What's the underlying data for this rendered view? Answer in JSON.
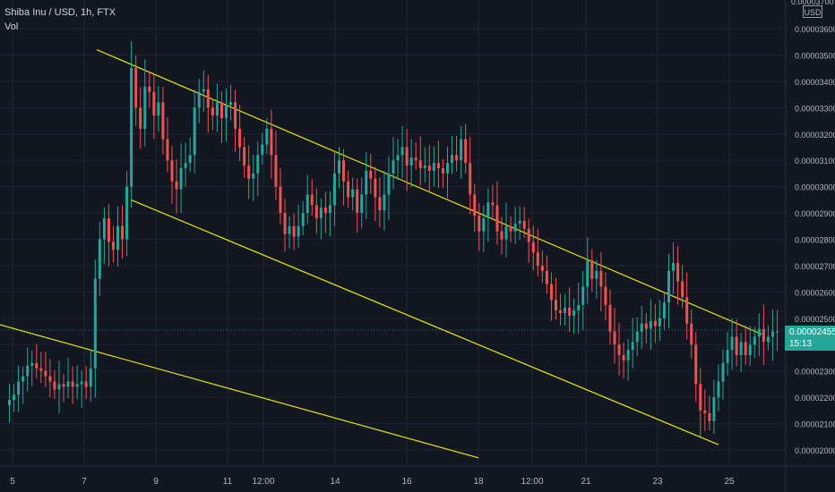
{
  "header": {
    "title": "Shiba Inu / USD, 1h, FTX",
    "volume_label": "Vol"
  },
  "price_scale": {
    "currency": "USD",
    "top_partial_label": "0.00003700"
  },
  "last_price": {
    "value": "0.00002455",
    "countdown": "15:13",
    "color": "#26a69a"
  },
  "colors": {
    "background": "#131722",
    "up": "#26a69a",
    "down": "#ef5350",
    "trendline": "#e6e600",
    "grid": "#1f2430",
    "axis_text": "#b2b5be"
  },
  "chart_data": {
    "type": "candlestick",
    "title": "Shiba Inu / USD, 1h, FTX",
    "ylabel": "USD",
    "ylim": [
      1.97e-05,
      3.7e-05
    ],
    "yticks": [
      "0.00002000",
      "0.00002100",
      "0.00002200",
      "0.00002300",
      "0.00002400",
      "0.00002500",
      "0.00002600",
      "0.00002700",
      "0.00002800",
      "0.00002900",
      "0.00003000",
      "0.00003100",
      "0.00003200",
      "0.00003300",
      "0.00003400",
      "0.00003500",
      "0.00003600"
    ],
    "xticks": [
      "5",
      "7",
      "9",
      "11",
      "12:00",
      "14",
      "16",
      "18",
      "12:00",
      "21",
      "23",
      "25"
    ],
    "grid": true,
    "series": [
      {
        "closes": [
          2.19e-05,
          2.21e-05,
          2.26e-05,
          2.28e-05,
          2.32e-05,
          2.33e-05,
          2.31e-05,
          2.3e-05,
          2.28e-05,
          2.26e-05,
          2.23e-05,
          2.25e-05,
          2.24e-05,
          2.26e-05,
          2.24e-05,
          2.25e-05,
          2.26e-05,
          2.24e-05,
          2.31e-05,
          2.65e-05,
          2.8e-05,
          2.88e-05,
          2.79e-05,
          2.76e-05,
          2.85e-05,
          2.8e-05,
          3e-05,
          3.45e-05,
          3.3e-05,
          3.22e-05,
          3.38e-05,
          3.36e-05,
          3.27e-05,
          3.32e-05,
          3.18e-05,
          3.1e-05,
          3.02e-05,
          2.99e-05,
          3.07e-05,
          3.09e-05,
          3.12e-05,
          3.3e-05,
          3.36e-05,
          3.37e-05,
          3.3e-05,
          3.27e-05,
          3.32e-05,
          3.26e-05,
          3.31e-05,
          3.32e-05,
          3.22e-05,
          3.15e-05,
          3.08e-05,
          3.03e-05,
          3.05e-05,
          3.12e-05,
          3.16e-05,
          3.22e-05,
          3.12e-05,
          3e-05,
          2.9e-05,
          2.82e-05,
          2.85e-05,
          2.81e-05,
          2.85e-05,
          2.9e-05,
          2.97e-05,
          2.93e-05,
          2.88e-05,
          2.92e-05,
          2.9e-05,
          2.93e-05,
          3.05e-05,
          3.1e-05,
          3.02e-05,
          2.96e-05,
          2.99e-05,
          2.9e-05,
          2.97e-05,
          3.06e-05,
          3.03e-05,
          2.96e-05,
          2.91e-05,
          2.97e-05,
          3.05e-05,
          3.1e-05,
          3.12e-05,
          3.15e-05,
          3.08e-05,
          3.11e-05,
          3.1e-05,
          3.07e-05,
          3.08e-05,
          3.06e-05,
          3.09e-05,
          3.07e-05,
          3.05e-05,
          3.09e-05,
          3.12e-05,
          3.1e-05,
          3.18e-05,
          3.09e-05,
          2.97e-05,
          2.89e-05,
          2.83e-05,
          2.88e-05,
          2.94e-05,
          2.93e-05,
          2.83e-05,
          2.8e-05,
          2.85e-05,
          2.83e-05,
          2.86e-05,
          2.87e-05,
          2.84e-05,
          2.79e-05,
          2.75e-05,
          2.7e-05,
          2.68e-05,
          2.63e-05,
          2.57e-05,
          2.53e-05,
          2.52e-05,
          2.54e-05,
          2.51e-05,
          2.53e-05,
          2.55e-05,
          2.62e-05,
          2.72e-05,
          2.65e-05,
          2.68e-05,
          2.62e-05,
          2.55e-05,
          2.45e-05,
          2.4e-05,
          2.36e-05,
          2.34e-05,
          2.38e-05,
          2.41e-05,
          2.45e-05,
          2.48e-05,
          2.46e-05,
          2.49e-05,
          2.47e-05,
          2.5e-05,
          2.56e-05,
          2.68e-05,
          2.71e-05,
          2.64e-05,
          2.58e-05,
          2.48e-05,
          2.4e-05,
          2.25e-05,
          2.15e-05,
          2.14e-05,
          2.11e-05,
          2.2e-05,
          2.26e-05,
          2.33e-05,
          2.38e-05,
          2.43e-05,
          2.36e-05,
          2.41e-05,
          2.36e-05,
          2.4e-05,
          2.43e-05,
          2.46e-05,
          2.41e-05,
          2.43e-05,
          2.45e-05,
          2.45e-05
        ]
      }
    ],
    "trendlines": [
      {
        "from": [
          7.35,
          3.52e-05
        ],
        "to": [
          25.9,
          2.44e-05
        ]
      },
      {
        "from": [
          8.3,
          2.95e-05
        ],
        "to": [
          24.7,
          2.02e-05
        ]
      },
      {
        "from": [
          4.0,
          2.5e-05
        ],
        "to": [
          18.0,
          1.97e-05
        ]
      }
    ],
    "x_range": [
      4.85,
      26.4
    ]
  }
}
